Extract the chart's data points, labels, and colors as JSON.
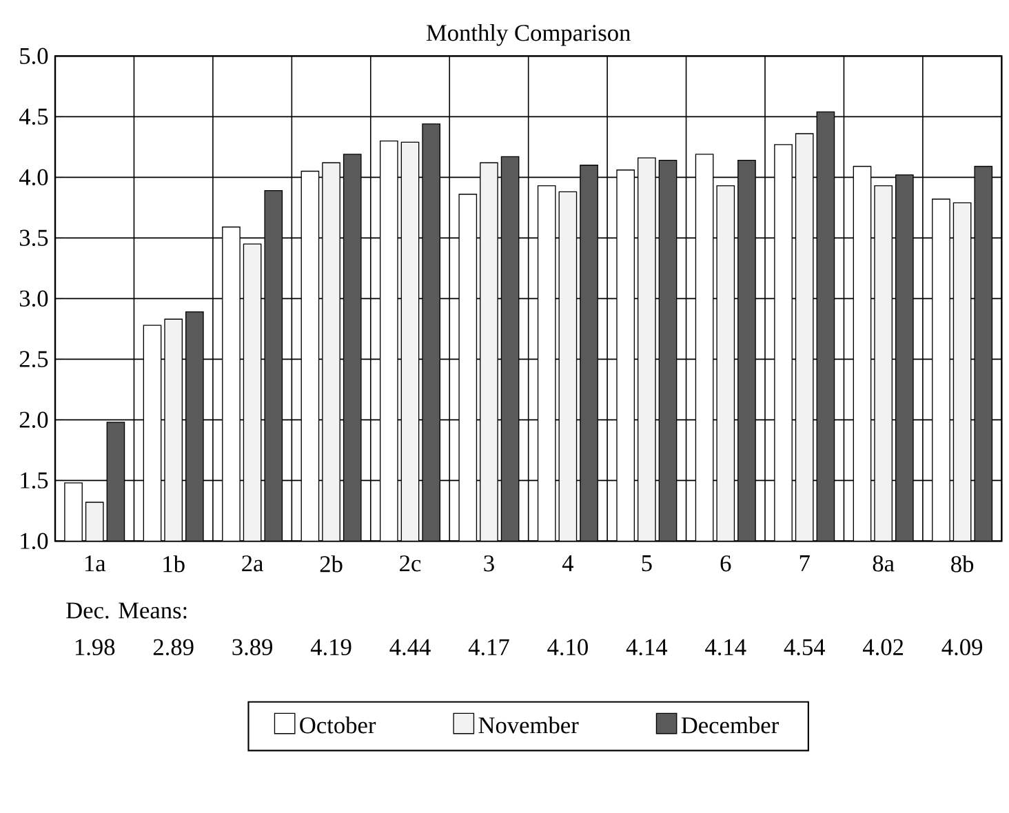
{
  "chart_data": {
    "type": "bar",
    "title": "Monthly Comparison",
    "categories": [
      "1a",
      "1b",
      "2a",
      "2b",
      "2c",
      "3",
      "4",
      "5",
      "6",
      "7",
      "8a",
      "8b"
    ],
    "series": [
      {
        "name": "October",
        "color": "#ffffff",
        "values": [
          1.48,
          2.78,
          3.59,
          4.05,
          4.3,
          3.86,
          3.93,
          4.06,
          4.19,
          4.27,
          4.09,
          3.82
        ]
      },
      {
        "name": "November",
        "color": "#f2f2f2",
        "values": [
          1.32,
          2.83,
          3.45,
          4.12,
          4.29,
          4.12,
          3.88,
          4.16,
          3.93,
          4.36,
          3.93,
          3.79
        ]
      },
      {
        "name": "December",
        "color": "#5a5a5a",
        "values": [
          1.98,
          2.89,
          3.89,
          4.19,
          4.44,
          4.17,
          4.1,
          4.14,
          4.14,
          4.54,
          4.02,
          4.09
        ],
        "value_labels": [
          "1.98",
          "2.89",
          "3.89",
          "4.19",
          "4.44",
          "4.17",
          "4.10",
          "4.14",
          "4.14",
          "4.54",
          "4.02",
          "4.09"
        ]
      }
    ],
    "annotations": [
      "Dec. Means:"
    ],
    "ylim": [
      1,
      5
    ],
    "yticks": [
      {
        "value": 1,
        "label": "1.0"
      },
      {
        "value": 1.5,
        "label": "1.5"
      },
      {
        "value": 2,
        "label": "2.0"
      },
      {
        "value": 2.5,
        "label": "2.5"
      },
      {
        "value": 3,
        "label": "3.0"
      },
      {
        "value": 3.5,
        "label": "3.5"
      },
      {
        "value": 4,
        "label": "4.0"
      },
      {
        "value": 4.5,
        "label": "4.5"
      },
      {
        "value": 5,
        "label": "5.0"
      }
    ],
    "grid": true,
    "legend": "bottom"
  }
}
